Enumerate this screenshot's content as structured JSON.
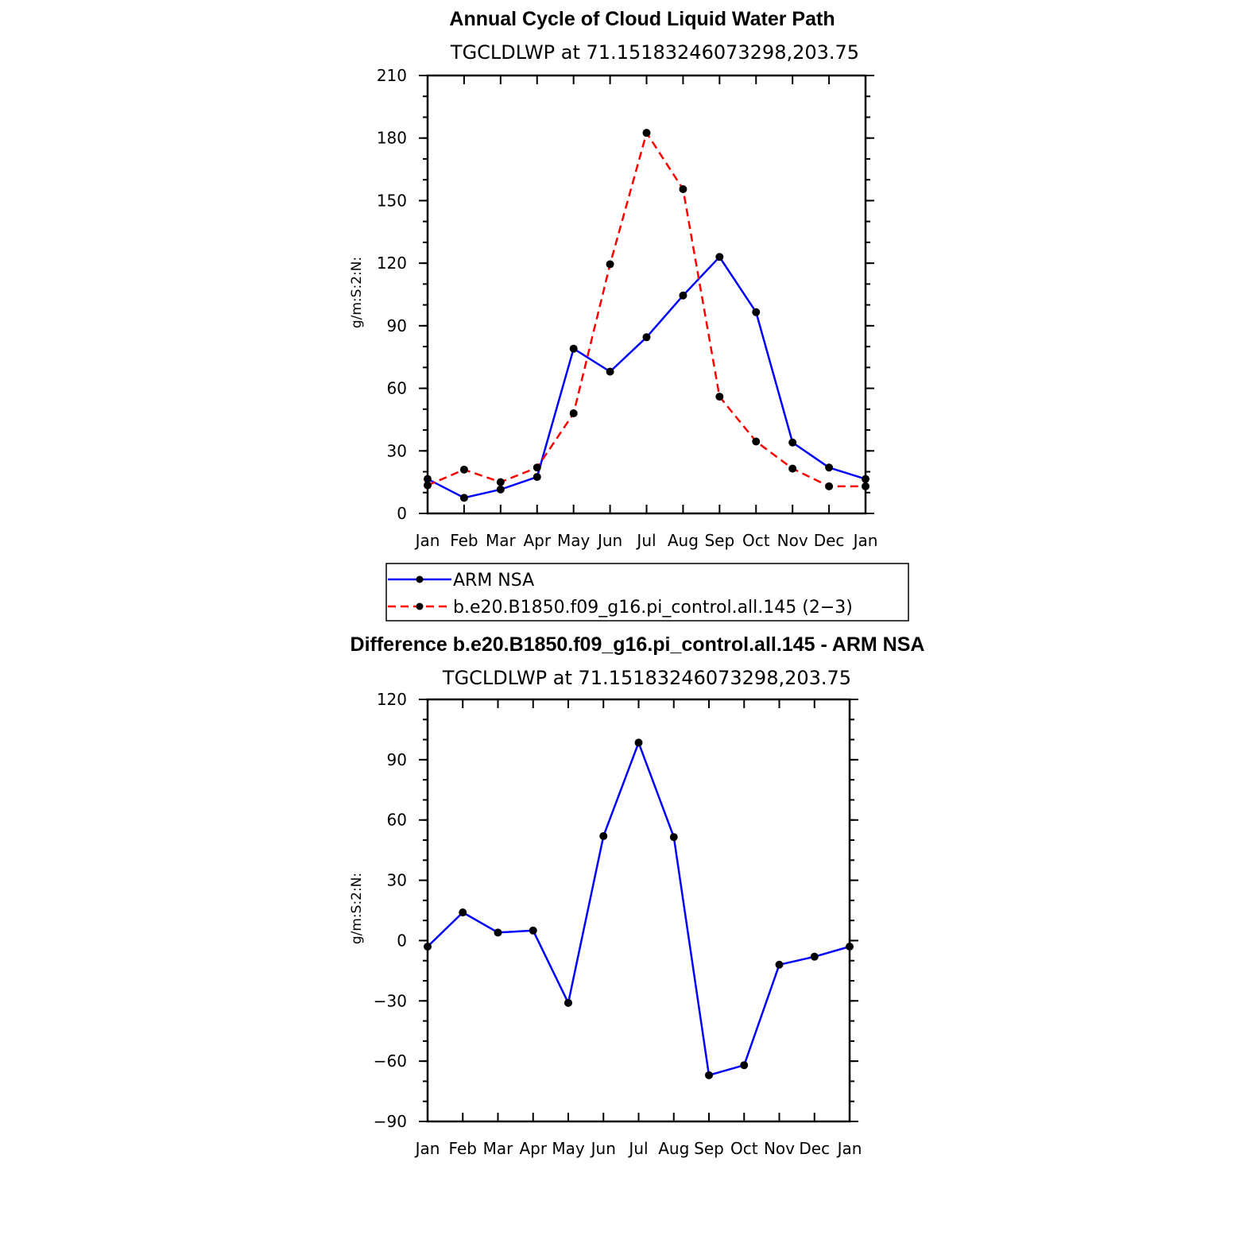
{
  "chart_data": [
    {
      "type": "line",
      "title": "Annual Cycle of Cloud Liquid Water Path",
      "subtitle": "TGCLDLWP  at  71.15183246073298,203.75",
      "ylabel": "g/m:S:2:N:",
      "xlabel": "",
      "categories": [
        "Jan",
        "Feb",
        "Mar",
        "Apr",
        "May",
        "Jun",
        "Jul",
        "Aug",
        "Sep",
        "Oct",
        "Nov",
        "Dec",
        "Jan"
      ],
      "ylim": [
        0,
        210
      ],
      "yticks": [
        0,
        30,
        60,
        90,
        120,
        150,
        180,
        210
      ],
      "ytick_labels": [
        "0",
        "30",
        "60",
        "90",
        "120",
        "150",
        "180",
        "210"
      ],
      "yminor_step": 10,
      "series": [
        {
          "name": "ARM  NSA",
          "color": "#0000ff",
          "dash": "solid",
          "values": [
            16.5,
            7.5,
            11.5,
            17.5,
            79,
            68,
            84.5,
            104.5,
            123,
            96.5,
            34,
            22,
            16.5
          ]
        },
        {
          "name": "b.e20.B1850.f09_g16.pi_control.all.145  (2−3)",
          "color": "#ff0000",
          "dash": "dashed",
          "values": [
            13.5,
            21,
            15,
            22,
            48,
            119.5,
            182.5,
            155.5,
            56,
            34.5,
            21.5,
            13,
            13
          ]
        }
      ]
    },
    {
      "type": "line",
      "title": "Difference b.e20.B1850.f09_g16.pi_control.all.145 - ARM NSA",
      "subtitle": "TGCLDLWP  at  71.15183246073298,203.75",
      "ylabel": "g/m:S:2:N:",
      "xlabel": "",
      "categories": [
        "Jan",
        "Feb",
        "Mar",
        "Apr",
        "May",
        "Jun",
        "Jul",
        "Aug",
        "Sep",
        "Oct",
        "Nov",
        "Dec",
        "Jan"
      ],
      "ylim": [
        -90,
        120
      ],
      "yticks": [
        -90,
        -60,
        -30,
        0,
        30,
        60,
        90,
        120
      ],
      "ytick_labels": [
        "−90",
        "−60",
        "−30",
        "0",
        "30",
        "60",
        "90",
        "120"
      ],
      "yminor_step": 10,
      "series": [
        {
          "name": "Difference",
          "color": "#0000ff",
          "dash": "solid",
          "values": [
            -3,
            14,
            4,
            5,
            -31,
            52,
            98.5,
            51.5,
            -67,
            -62,
            -12,
            -8,
            -3
          ]
        }
      ]
    }
  ],
  "legend": {
    "entries": [
      "ARM  NSA",
      "b.e20.B1850.f09_g16.pi_control.all.145  (2−3)"
    ]
  },
  "colors": {
    "marker": "#000000",
    "frame": "#000000"
  }
}
